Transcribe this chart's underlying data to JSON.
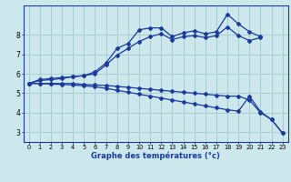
{
  "title": "Graphe des températures (°c)",
  "bg_color": "#cce8ec",
  "grid_color": "#aacccc",
  "line_color": "#1a3a9e",
  "xlim": [
    -0.5,
    23.5
  ],
  "ylim": [
    2.5,
    9.5
  ],
  "xticks": [
    0,
    1,
    2,
    3,
    4,
    5,
    6,
    7,
    8,
    9,
    10,
    11,
    12,
    13,
    14,
    15,
    16,
    17,
    18,
    19,
    20,
    21,
    22,
    23
  ],
  "yticks": [
    3,
    4,
    5,
    6,
    7,
    8
  ],
  "line1_x": [
    0,
    1,
    2,
    3,
    4,
    5,
    6,
    7,
    8,
    9,
    10,
    11,
    12,
    13,
    14,
    15,
    16,
    17,
    18,
    19,
    20,
    21
  ],
  "line1_y": [
    5.5,
    5.7,
    5.75,
    5.8,
    5.85,
    5.9,
    6.1,
    6.55,
    7.3,
    7.55,
    8.25,
    8.35,
    8.35,
    7.9,
    8.1,
    8.2,
    8.05,
    8.15,
    9.05,
    8.55,
    8.15,
    7.9
  ],
  "line2_x": [
    0,
    1,
    2,
    3,
    4,
    5,
    6,
    7,
    8,
    9,
    10,
    11,
    12,
    13,
    14,
    15,
    16,
    17,
    18,
    19,
    20,
    21
  ],
  "line2_y": [
    5.5,
    5.65,
    5.7,
    5.75,
    5.85,
    5.9,
    6.0,
    6.45,
    6.95,
    7.3,
    7.65,
    7.9,
    8.05,
    7.75,
    7.9,
    7.95,
    7.85,
    7.95,
    8.4,
    7.95,
    7.7,
    7.85
  ],
  "line3_x": [
    0,
    1,
    2,
    3,
    4,
    5,
    6,
    7,
    8,
    9,
    10,
    11,
    12,
    13,
    14,
    15,
    16,
    17,
    18,
    19,
    20,
    21,
    22,
    23
  ],
  "line3_y": [
    5.5,
    5.5,
    5.5,
    5.5,
    5.5,
    5.45,
    5.42,
    5.4,
    5.35,
    5.3,
    5.25,
    5.2,
    5.15,
    5.1,
    5.05,
    5.0,
    4.95,
    4.9,
    4.85,
    4.85,
    4.65,
    4.0,
    3.65,
    2.95
  ],
  "line4_x": [
    0,
    1,
    2,
    3,
    4,
    5,
    6,
    7,
    8,
    9,
    10,
    11,
    12,
    13,
    14,
    15,
    16,
    17,
    18,
    19,
    20,
    21,
    22,
    23
  ],
  "line4_y": [
    5.5,
    5.5,
    5.47,
    5.45,
    5.42,
    5.38,
    5.33,
    5.25,
    5.15,
    5.05,
    4.95,
    4.85,
    4.75,
    4.65,
    4.55,
    4.45,
    4.35,
    4.25,
    4.15,
    4.08,
    4.85,
    4.05,
    3.65,
    2.95
  ]
}
